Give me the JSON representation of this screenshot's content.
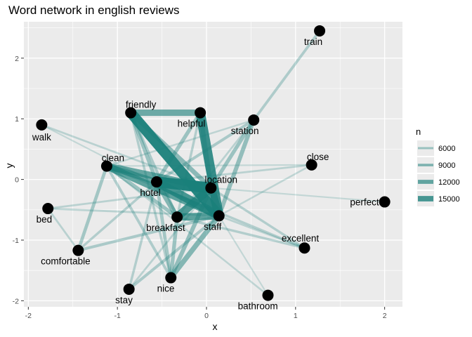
{
  "chart_data": {
    "type": "network",
    "title": "Word network in english reviews",
    "xlabel": "x",
    "ylabel": "y",
    "xlim": [
      -2.05,
      2.2
    ],
    "ylim": [
      -2.1,
      2.6
    ],
    "xticks": [
      -2,
      -1,
      0,
      1,
      2
    ],
    "yticks": [
      -2,
      -1,
      0,
      1,
      2
    ],
    "xtick_labels": [
      "-2",
      "-1",
      "0",
      "1",
      "2"
    ],
    "ytick_labels": [
      "-2",
      "-1",
      "0",
      "1",
      "2"
    ],
    "grid": true,
    "panel_background": "#ebebeb",
    "grid_color": "#ffffff",
    "edge_color": "#1a7f7a",
    "node_color": "#000000",
    "legend": {
      "title": "n",
      "placement": "right",
      "entries": [
        {
          "label": "6000",
          "value": 6000
        },
        {
          "label": "9000",
          "value": 9000
        },
        {
          "label": "12000",
          "value": 12000
        },
        {
          "label": "15000",
          "value": 15000
        }
      ]
    },
    "nodes": [
      {
        "id": "train",
        "label": "train",
        "x": 1.27,
        "y": 2.45,
        "label_pos": "below-left"
      },
      {
        "id": "friendly",
        "label": "friendly",
        "x": -0.85,
        "y": 1.1,
        "label_pos": "above-right"
      },
      {
        "id": "helpful",
        "label": "helpful",
        "x": -0.07,
        "y": 1.1,
        "label_pos": "below-left"
      },
      {
        "id": "station",
        "label": "station",
        "x": 0.53,
        "y": 0.98,
        "label_pos": "below-left"
      },
      {
        "id": "walk",
        "label": "walk",
        "x": -1.85,
        "y": 0.9,
        "label_pos": "below"
      },
      {
        "id": "clean",
        "label": "clean",
        "x": -1.12,
        "y": 0.22,
        "label_pos": "above-right"
      },
      {
        "id": "close",
        "label": "close",
        "x": 1.18,
        "y": 0.24,
        "label_pos": "above-right"
      },
      {
        "id": "hotel",
        "label": "hotel",
        "x": -0.56,
        "y": -0.04,
        "label_pos": "below-left"
      },
      {
        "id": "location",
        "label": "location",
        "x": 0.05,
        "y": -0.14,
        "label_pos": "above-right"
      },
      {
        "id": "perfect",
        "label": "perfect",
        "x": 2.0,
        "y": -0.37,
        "label_pos": "left"
      },
      {
        "id": "bed",
        "label": "bed",
        "x": -1.78,
        "y": -0.48,
        "label_pos": "below-left"
      },
      {
        "id": "breakfast",
        "label": "breakfast",
        "x": -0.33,
        "y": -0.62,
        "label_pos": "below-left"
      },
      {
        "id": "staff",
        "label": "staff",
        "x": 0.14,
        "y": -0.6,
        "label_pos": "below-left"
      },
      {
        "id": "excellent",
        "label": "excellent",
        "x": 1.1,
        "y": -1.13,
        "label_pos": "above-left"
      },
      {
        "id": "comfortable",
        "label": "comfortable",
        "x": -1.44,
        "y": -1.17,
        "label_pos": "below-left"
      },
      {
        "id": "nice",
        "label": "nice",
        "x": -0.4,
        "y": -1.62,
        "label_pos": "below-left"
      },
      {
        "id": "stay",
        "label": "stay",
        "x": -0.87,
        "y": -1.81,
        "label_pos": "below-left"
      },
      {
        "id": "bathroom",
        "label": "bathroom",
        "x": 0.69,
        "y": -1.91,
        "label_pos": "below-left"
      }
    ],
    "edges": [
      {
        "source": "staff",
        "target": "friendly",
        "n": 15500
      },
      {
        "source": "staff",
        "target": "helpful",
        "n": 14500
      },
      {
        "source": "friendly",
        "target": "helpful",
        "n": 11000
      },
      {
        "source": "location",
        "target": "hotel",
        "n": 16000
      },
      {
        "source": "staff",
        "target": "hotel",
        "n": 13500
      },
      {
        "source": "breakfast",
        "target": "location",
        "n": 13000
      },
      {
        "source": "clean",
        "target": "staff",
        "n": 12000
      },
      {
        "source": "clean",
        "target": "location",
        "n": 11500
      },
      {
        "source": "clean",
        "target": "hotel",
        "n": 10500
      },
      {
        "source": "breakfast",
        "target": "staff",
        "n": 12000
      },
      {
        "source": "breakfast",
        "target": "hotel",
        "n": 9500
      },
      {
        "source": "location",
        "target": "staff",
        "n": 13000
      },
      {
        "source": "friendly",
        "target": "location",
        "n": 9000
      },
      {
        "source": "friendly",
        "target": "hotel",
        "n": 8000
      },
      {
        "source": "helpful",
        "target": "location",
        "n": 9000
      },
      {
        "source": "helpful",
        "target": "hotel",
        "n": 8000
      },
      {
        "source": "station",
        "target": "staff",
        "n": 8500
      },
      {
        "source": "station",
        "target": "location",
        "n": 8000
      },
      {
        "source": "station",
        "target": "hotel",
        "n": 7000
      },
      {
        "source": "train",
        "target": "station",
        "n": 6800
      },
      {
        "source": "nice",
        "target": "staff",
        "n": 9500
      },
      {
        "source": "nice",
        "target": "breakfast",
        "n": 8000
      },
      {
        "source": "nice",
        "target": "location",
        "n": 8500
      },
      {
        "source": "nice",
        "target": "hotel",
        "n": 7500
      },
      {
        "source": "stay",
        "target": "staff",
        "n": 7000
      },
      {
        "source": "stay",
        "target": "hotel",
        "n": 6500
      },
      {
        "source": "stay",
        "target": "location",
        "n": 6000
      },
      {
        "source": "comfortable",
        "target": "clean",
        "n": 7500
      },
      {
        "source": "comfortable",
        "target": "staff",
        "n": 7000
      },
      {
        "source": "comfortable",
        "target": "hotel",
        "n": 6500
      },
      {
        "source": "comfortable",
        "target": "bed",
        "n": 6000
      },
      {
        "source": "bed",
        "target": "staff",
        "n": 6000
      },
      {
        "source": "bed",
        "target": "location",
        "n": 6000
      },
      {
        "source": "walk",
        "target": "location",
        "n": 6000
      },
      {
        "source": "walk",
        "target": "staff",
        "n": 5500
      },
      {
        "source": "close",
        "target": "hotel",
        "n": 6000
      },
      {
        "source": "close",
        "target": "staff",
        "n": 5800
      },
      {
        "source": "close",
        "target": "clean",
        "n": 5500
      },
      {
        "source": "excellent",
        "target": "breakfast",
        "n": 6500
      },
      {
        "source": "excellent",
        "target": "clean",
        "n": 6500
      },
      {
        "source": "excellent",
        "target": "location",
        "n": 6500
      },
      {
        "source": "excellent",
        "target": "staff",
        "n": 6000
      },
      {
        "source": "perfect",
        "target": "location",
        "n": 5500
      },
      {
        "source": "bathroom",
        "target": "clean",
        "n": 5800
      },
      {
        "source": "bathroom",
        "target": "staff",
        "n": 5500
      },
      {
        "source": "friendly",
        "target": "breakfast",
        "n": 7000
      },
      {
        "source": "friendly",
        "target": "nice",
        "n": 6500
      },
      {
        "source": "helpful",
        "target": "breakfast",
        "n": 6500
      },
      {
        "source": "clean",
        "target": "nice",
        "n": 6800
      },
      {
        "source": "clean",
        "target": "breakfast",
        "n": 8000
      },
      {
        "source": "station",
        "target": "clean",
        "n": 5800
      },
      {
        "source": "station",
        "target": "breakfast",
        "n": 6000
      }
    ]
  }
}
